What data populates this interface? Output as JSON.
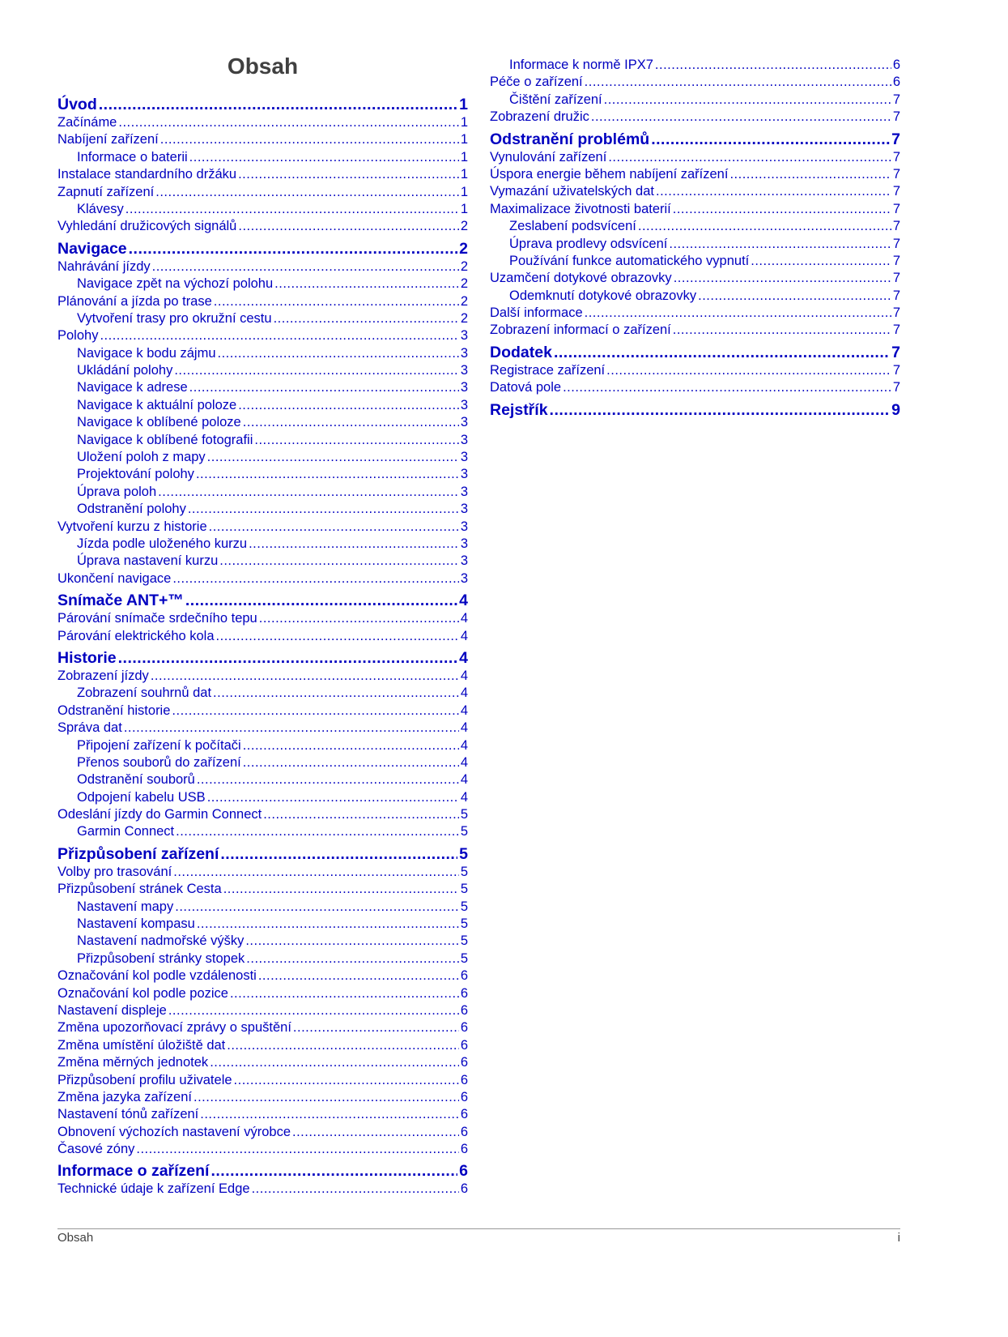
{
  "title": "Obsah",
  "link_color": "#0000c0",
  "left_column": [
    {
      "t": "Úvod",
      "p": "1",
      "lvl": 0
    },
    {
      "t": "Začínáme",
      "p": "1",
      "lvl": 1
    },
    {
      "t": "Nabíjení zařízení",
      "p": "1",
      "lvl": 1
    },
    {
      "t": "Informace o baterii",
      "p": "1",
      "lvl": 2
    },
    {
      "t": "Instalace standardního držáku",
      "p": "1",
      "lvl": 1
    },
    {
      "t": "Zapnutí zařízení",
      "p": "1",
      "lvl": 1
    },
    {
      "t": "Klávesy",
      "p": "1",
      "lvl": 2
    },
    {
      "t": "Vyhledání družicových signálů",
      "p": "2",
      "lvl": 1
    },
    {
      "t": "Navigace",
      "p": "2",
      "lvl": 0
    },
    {
      "t": "Nahrávání jízdy",
      "p": "2",
      "lvl": 1
    },
    {
      "t": "Navigace zpět na výchozí polohu",
      "p": "2",
      "lvl": 2
    },
    {
      "t": "Plánování a jízda po trase",
      "p": "2",
      "lvl": 1
    },
    {
      "t": "Vytvoření trasy pro okružní cestu",
      "p": "2",
      "lvl": 2
    },
    {
      "t": "Polohy",
      "p": "3",
      "lvl": 1
    },
    {
      "t": "Navigace k bodu zájmu",
      "p": "3",
      "lvl": 2
    },
    {
      "t": "Ukládání polohy",
      "p": "3",
      "lvl": 2
    },
    {
      "t": "Navigace k adrese",
      "p": "3",
      "lvl": 2
    },
    {
      "t": "Navigace k aktuální poloze",
      "p": "3",
      "lvl": 2
    },
    {
      "t": "Navigace k oblíbené poloze",
      "p": "3",
      "lvl": 2
    },
    {
      "t": "Navigace k oblíbené fotografii",
      "p": "3",
      "lvl": 2
    },
    {
      "t": "Uložení poloh z mapy",
      "p": "3",
      "lvl": 2
    },
    {
      "t": "Projektování polohy",
      "p": "3",
      "lvl": 2
    },
    {
      "t": "Úprava poloh",
      "p": "3",
      "lvl": 2
    },
    {
      "t": "Odstranění polohy",
      "p": "3",
      "lvl": 2
    },
    {
      "t": "Vytvoření kurzu z historie",
      "p": "3",
      "lvl": 1
    },
    {
      "t": "Jízda podle uloženého kurzu",
      "p": "3",
      "lvl": 2
    },
    {
      "t": "Úprava nastavení kurzu",
      "p": "3",
      "lvl": 2
    },
    {
      "t": "Ukončení navigace",
      "p": "3",
      "lvl": 1
    },
    {
      "t": "Snímače ANT+™",
      "p": "4",
      "lvl": 0
    },
    {
      "t": "Párování snímače srdečního tepu",
      "p": "4",
      "lvl": 1
    },
    {
      "t": "Párování elektrického kola",
      "p": "4",
      "lvl": 1
    },
    {
      "t": "Historie",
      "p": "4",
      "lvl": 0
    },
    {
      "t": "Zobrazení jízdy",
      "p": "4",
      "lvl": 1
    },
    {
      "t": "Zobrazení souhrnů dat",
      "p": "4",
      "lvl": 2
    },
    {
      "t": "Odstranění historie",
      "p": "4",
      "lvl": 1
    },
    {
      "t": "Správa dat",
      "p": "4",
      "lvl": 1
    },
    {
      "t": "Připojení zařízení k počítači",
      "p": "4",
      "lvl": 2
    },
    {
      "t": "Přenos souborů do zařízení",
      "p": "4",
      "lvl": 2
    },
    {
      "t": "Odstranění souborů",
      "p": "4",
      "lvl": 2
    },
    {
      "t": "Odpojení kabelu USB",
      "p": "4",
      "lvl": 2
    },
    {
      "t": "Odeslání jízdy do Garmin Connect",
      "p": "5",
      "lvl": 1
    },
    {
      "t": "Garmin Connect",
      "p": "5",
      "lvl": 2
    },
    {
      "t": "Přizpůsobení zařízení",
      "p": "5",
      "lvl": 0
    },
    {
      "t": "Volby pro trasování",
      "p": "5",
      "lvl": 1
    },
    {
      "t": "Přizpůsobení stránek Cesta",
      "p": "5",
      "lvl": 1
    },
    {
      "t": "Nastavení mapy",
      "p": "5",
      "lvl": 2
    },
    {
      "t": "Nastavení kompasu",
      "p": "5",
      "lvl": 2
    },
    {
      "t": "Nastavení nadmořské výšky",
      "p": "5",
      "lvl": 2
    },
    {
      "t": "Přizpůsobení stránky stopek",
      "p": "5",
      "lvl": 2
    },
    {
      "t": "Označování kol podle vzdálenosti",
      "p": "6",
      "lvl": 1
    },
    {
      "t": "Označování kol podle pozice",
      "p": "6",
      "lvl": 1
    },
    {
      "t": "Nastavení displeje",
      "p": "6",
      "lvl": 1
    },
    {
      "t": "Změna upozorňovací zprávy o spuštění",
      "p": "6",
      "lvl": 1
    },
    {
      "t": "Změna umístění úložiště dat",
      "p": "6",
      "lvl": 1
    },
    {
      "t": "Změna měrných jednotek",
      "p": "6",
      "lvl": 1
    },
    {
      "t": "Přizpůsobení profilu uživatele",
      "p": "6",
      "lvl": 1
    },
    {
      "t": "Změna jazyka zařízení",
      "p": "6",
      "lvl": 1
    },
    {
      "t": "Nastavení tónů zařízení",
      "p": "6",
      "lvl": 1
    },
    {
      "t": "Obnovení výchozích nastavení výrobce",
      "p": "6",
      "lvl": 1
    },
    {
      "t": "Časové zóny",
      "p": "6",
      "lvl": 1
    },
    {
      "t": "Informace o zařízení",
      "p": "6",
      "lvl": 0
    },
    {
      "t": "Technické údaje k zařízení Edge",
      "p": "6",
      "lvl": 1
    }
  ],
  "right_column": [
    {
      "t": "Informace k normě IPX7",
      "p": "6",
      "lvl": 2
    },
    {
      "t": "Péče o zařízení",
      "p": "6",
      "lvl": 1
    },
    {
      "t": "Čištění zařízení",
      "p": "7",
      "lvl": 2
    },
    {
      "t": "Zobrazení družic",
      "p": "7",
      "lvl": 1
    },
    {
      "t": "Odstranění problémů",
      "p": "7",
      "lvl": 0
    },
    {
      "t": "Vynulování zařízení",
      "p": "7",
      "lvl": 1
    },
    {
      "t": "Úspora energie během nabíjení zařízení",
      "p": "7",
      "lvl": 1
    },
    {
      "t": "Vymazání uživatelských dat",
      "p": "7",
      "lvl": 1
    },
    {
      "t": "Maximalizace životnosti baterií",
      "p": "7",
      "lvl": 1
    },
    {
      "t": "Zeslabení podsvícení",
      "p": "7",
      "lvl": 2
    },
    {
      "t": "Úprava prodlevy odsvícení",
      "p": "7",
      "lvl": 2
    },
    {
      "t": "Používání funkce automatického vypnutí",
      "p": "7",
      "lvl": 2
    },
    {
      "t": "Uzamčení dotykové obrazovky",
      "p": "7",
      "lvl": 1
    },
    {
      "t": "Odemknutí dotykové obrazovky",
      "p": "7",
      "lvl": 2
    },
    {
      "t": "Další informace",
      "p": "7",
      "lvl": 1
    },
    {
      "t": "Zobrazení informací o zařízení",
      "p": "7",
      "lvl": 1
    },
    {
      "t": "Dodatek",
      "p": "7",
      "lvl": 0
    },
    {
      "t": "Registrace zařízení",
      "p": "7",
      "lvl": 1
    },
    {
      "t": "Datová pole",
      "p": "7",
      "lvl": 1
    },
    {
      "t": "Rejstřík",
      "p": "9",
      "lvl": 0
    }
  ],
  "footer": {
    "section": "Obsah",
    "page": "i"
  }
}
